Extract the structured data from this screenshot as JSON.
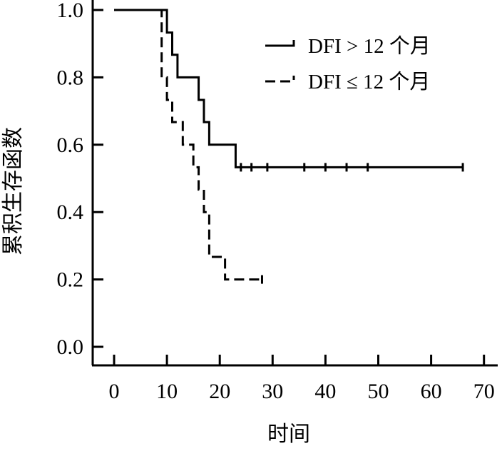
{
  "chart_data": {
    "type": "line",
    "step": true,
    "xlabel": "时间",
    "ylabel": "累积生存函数",
    "xlim": [
      0,
      70
    ],
    "ylim": [
      0,
      1.0
    ],
    "x_ticks": [
      "0",
      "10",
      "20",
      "30",
      "40",
      "50",
      "60",
      "70"
    ],
    "y_ticks": [
      "0.0",
      "0.2",
      "0.4",
      "0.6",
      "0.8",
      "1.0"
    ],
    "grid": false,
    "legend": "top-right",
    "series": [
      {
        "name": "DFI > 12 个月",
        "line_style": "solid",
        "x": [
          0,
          10,
          11,
          12,
          13,
          16,
          17,
          18,
          23,
          66
        ],
        "y": [
          1.0,
          0.933,
          0.867,
          0.8,
          0.8,
          0.733,
          0.667,
          0.6,
          0.533,
          0.533
        ],
        "censored_x": [
          24,
          26,
          29,
          36,
          40,
          44,
          48,
          66
        ],
        "censored_y": [
          0.533,
          0.533,
          0.533,
          0.533,
          0.533,
          0.533,
          0.533,
          0.533
        ]
      },
      {
        "name": "DFI ≤ 12 个月",
        "line_style": "dashed",
        "x": [
          0,
          9,
          10,
          11,
          13,
          15,
          16,
          17,
          18,
          21,
          28
        ],
        "y": [
          1.0,
          0.8,
          0.733,
          0.667,
          0.6,
          0.533,
          0.467,
          0.4,
          0.267,
          0.2,
          0.2
        ],
        "censored_x": [
          28
        ],
        "censored_y": [
          0.2
        ]
      }
    ]
  }
}
